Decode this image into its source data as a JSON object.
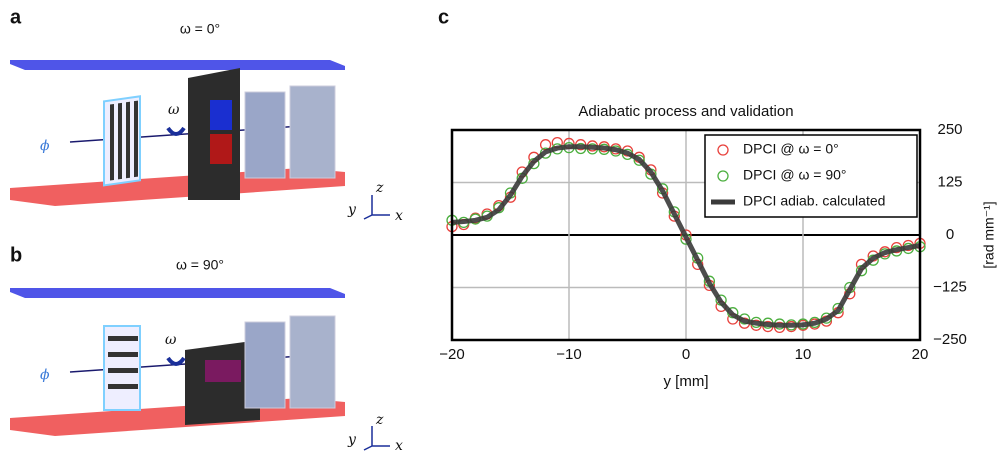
{
  "panels": [
    {
      "label": "a",
      "title": "ω = 0°",
      "source_symbol": "ϕ",
      "rotation_symbol": "ω",
      "axis_z": "z",
      "axis_y": "y",
      "axis_x": "x"
    },
    {
      "label": "b",
      "title": "ω = 90°",
      "source_symbol": "ϕ",
      "rotation_symbol": "ω",
      "axis_z": "z",
      "axis_y": "y",
      "axis_x": "x"
    }
  ],
  "chart_label": "c",
  "chart_data": {
    "type": "scatter",
    "title": "Adiabatic process and validation",
    "x_label": "y [mm]",
    "y_label": "[rad mm⁻¹]",
    "x": [
      -20,
      -19,
      -18,
      -17,
      -16,
      -15,
      -14,
      -13,
      -12,
      -11,
      -10,
      -9,
      -8,
      -7,
      -6,
      -5,
      -4,
      -3,
      -2,
      -1,
      0,
      1,
      2,
      3,
      4,
      5,
      6,
      7,
      8,
      9,
      10,
      11,
      12,
      13,
      14,
      15,
      16,
      17,
      18,
      19,
      20
    ],
    "series": [
      {
        "name": "DPCI @ ω = 0°",
        "color": "#e8413c",
        "marker": "circle",
        "values": [
          20,
          25,
          40,
          50,
          70,
          90,
          150,
          185,
          215,
          220,
          218,
          215,
          212,
          210,
          205,
          200,
          185,
          155,
          100,
          45,
          0,
          -70,
          -120,
          -170,
          -200,
          -210,
          -215,
          -218,
          -220,
          -218,
          -215,
          -212,
          -205,
          -185,
          -140,
          -70,
          -50,
          -40,
          -30,
          -25,
          -20
        ]
      },
      {
        "name": "DPCI @ ω = 90°",
        "color": "#4caf3f",
        "marker": "circle",
        "values": [
          35,
          30,
          38,
          45,
          65,
          100,
          135,
          170,
          195,
          205,
          208,
          206,
          205,
          204,
          200,
          192,
          178,
          145,
          110,
          55,
          -10,
          -55,
          -110,
          -155,
          -185,
          -200,
          -208,
          -210,
          -212,
          -214,
          -212,
          -208,
          -198,
          -175,
          -125,
          -85,
          -60,
          -45,
          -38,
          -32,
          -28
        ]
      },
      {
        "name": "DPCI adiab. calculated",
        "color": "#3a3a3a",
        "marker": "line",
        "values": [
          30,
          32,
          35,
          42,
          60,
          95,
          140,
          175,
          198,
          207,
          210,
          210,
          209,
          207,
          203,
          195,
          180,
          150,
          105,
          50,
          -5,
          -60,
          -115,
          -160,
          -190,
          -205,
          -210,
          -213,
          -215,
          -215,
          -214,
          -210,
          -200,
          -180,
          -130,
          -80,
          -55,
          -42,
          -35,
          -30,
          -25
        ]
      }
    ],
    "xlim": [
      -20,
      20
    ],
    "xticks": [
      {
        "value": -20,
        "label": "−20"
      },
      {
        "value": -10,
        "label": "−10"
      },
      0,
      10,
      20
    ],
    "ylim": [
      -250,
      250
    ],
    "yticks": [
      {
        "value": -250,
        "label": "−250"
      },
      {
        "value": -125,
        "label": "−125"
      },
      0,
      125,
      250
    ],
    "y_axis_side": "right",
    "grid": true,
    "legend": "upper right"
  }
}
